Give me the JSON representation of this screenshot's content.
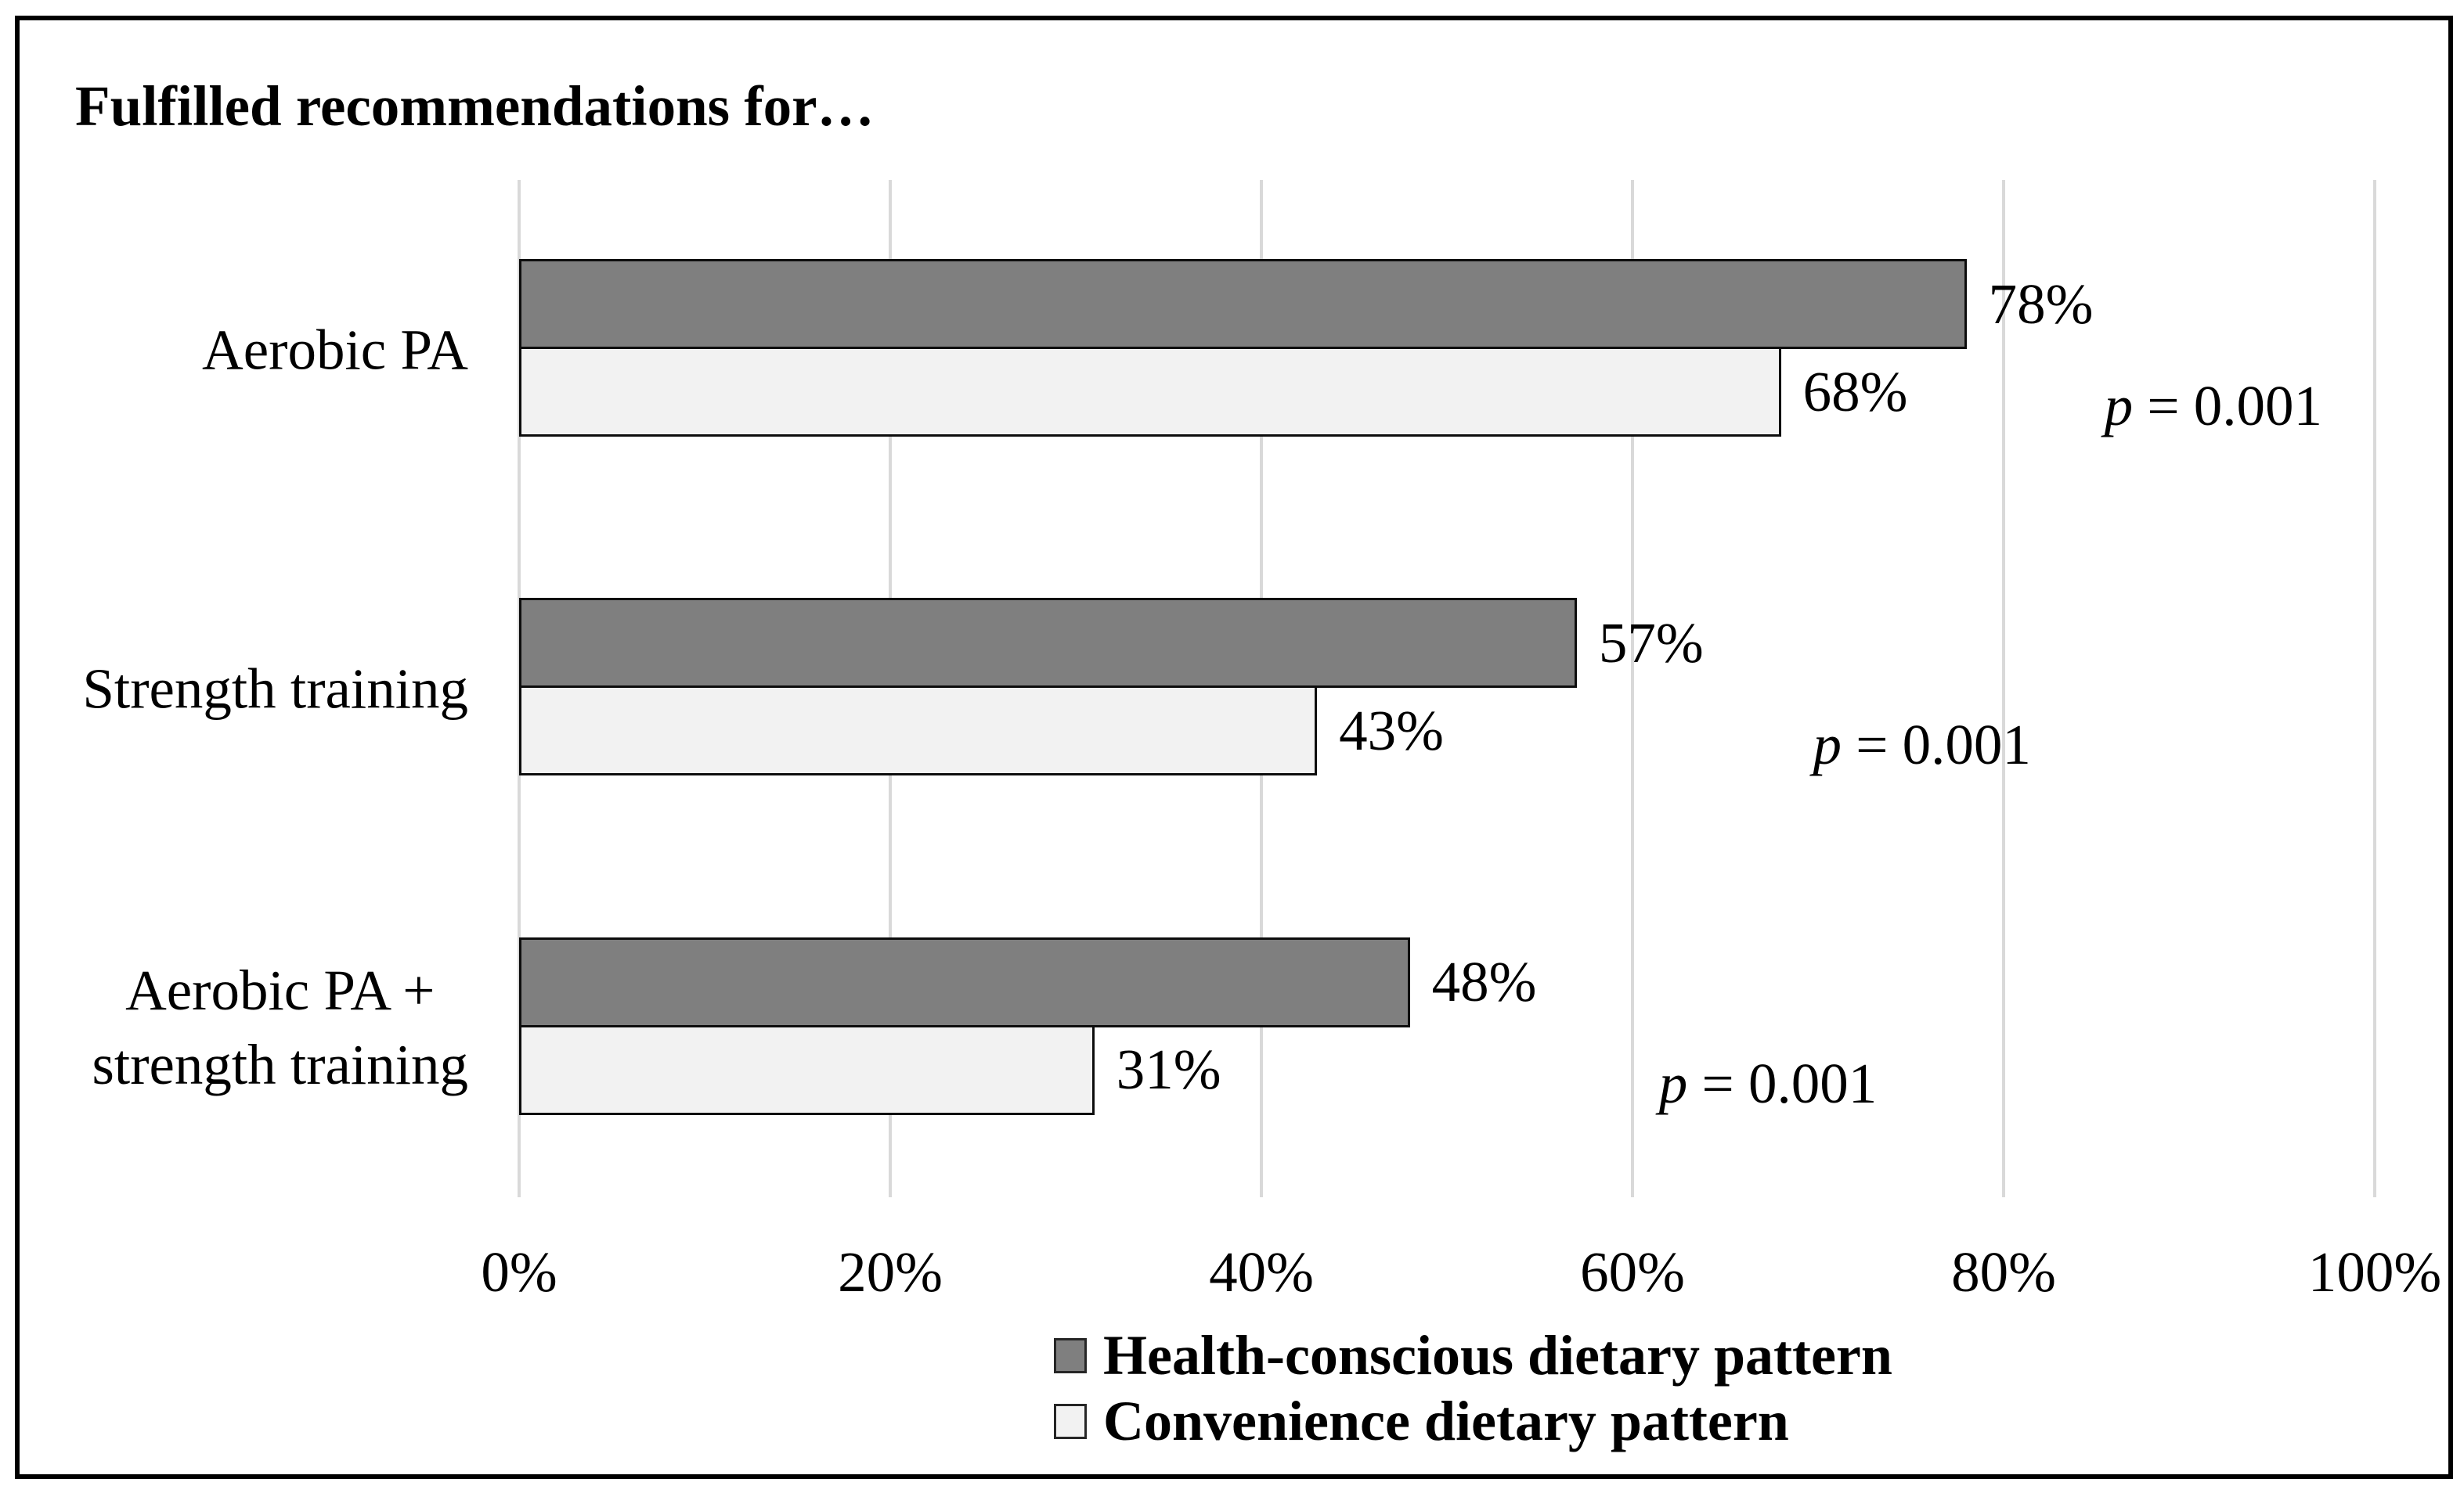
{
  "chart_data": {
    "type": "bar",
    "orientation": "horizontal",
    "title": "Fulfilled recommendations for…",
    "categories": [
      {
        "lines": [
          "Aerobic PA"
        ]
      },
      {
        "lines": [
          "Strength training"
        ]
      },
      {
        "lines": [
          "Aerobic PA +",
          "strength training"
        ]
      }
    ],
    "series": [
      {
        "name": "Health-conscious dietary pattern",
        "values": [
          78,
          57,
          48
        ],
        "data_labels": [
          "78%",
          "57%",
          "48%"
        ],
        "fill": "#7f7f7f",
        "border": "#0d0d0d"
      },
      {
        "name": "Convenience dietary pattern",
        "values": [
          68,
          43,
          31
        ],
        "data_labels": [
          "68%",
          "43%",
          "31%"
        ],
        "fill": "#f2f2f2",
        "border": "#0d0d0d"
      }
    ],
    "p_value_annotations": [
      {
        "text": "p = 0.001",
        "category_index": 0,
        "x_pct": 91.3
      },
      {
        "text": "p = 0.001",
        "category_index": 1,
        "x_pct": 75.6
      },
      {
        "text": "p = 0.001",
        "category_index": 2,
        "x_pct": 67.3
      }
    ],
    "x_axis": {
      "min": 0,
      "max": 100,
      "ticks": [
        {
          "label": "0%",
          "value": 0
        },
        {
          "label": "20%",
          "value": 20
        },
        {
          "label": "40%",
          "value": 40
        },
        {
          "label": "60%",
          "value": 60
        },
        {
          "label": "80%",
          "value": 80
        },
        {
          "label": "100%",
          "value": 100
        }
      ]
    },
    "grid": true,
    "legend_position": "bottom",
    "colors": {
      "gridline": "#d9d9d9",
      "frame": "#000000",
      "text": "#000000",
      "background": "#ffffff"
    }
  }
}
